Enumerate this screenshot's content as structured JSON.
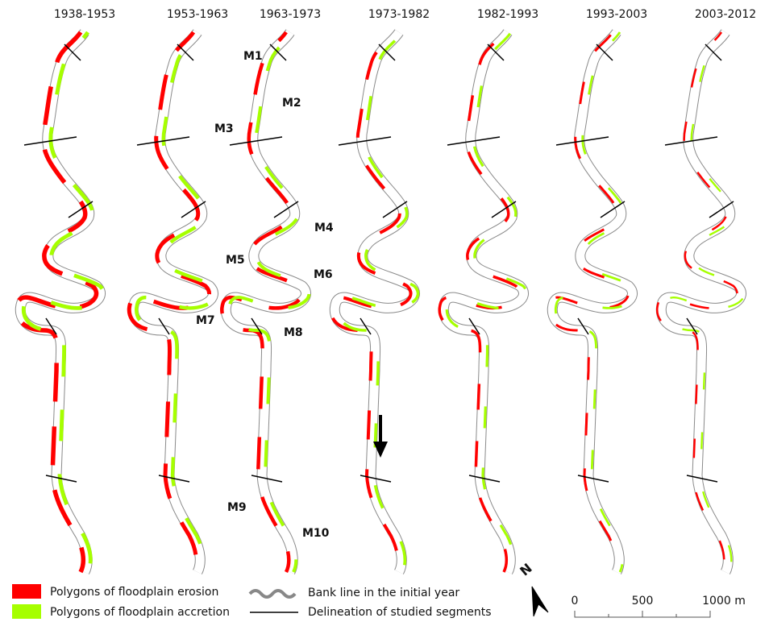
{
  "panels": [
    {
      "title": "1938-1953"
    },
    {
      "title": "1953-1963"
    },
    {
      "title": "1963-1973"
    },
    {
      "title": "1973-1982"
    },
    {
      "title": "1982-1993"
    },
    {
      "title": "1993-2003"
    },
    {
      "title": "2003-2012"
    }
  ],
  "segment_labels": [
    {
      "label": "M1"
    },
    {
      "label": "M2"
    },
    {
      "label": "M3"
    },
    {
      "label": "M4"
    },
    {
      "label": "M5"
    },
    {
      "label": "M6"
    },
    {
      "label": "M7"
    },
    {
      "label": "M8"
    },
    {
      "label": "M9"
    },
    {
      "label": "M10"
    }
  ],
  "legend": {
    "items": [
      {
        "label": "Polygons of floodplain erosion"
      },
      {
        "label": "Polygons of floodplain accretion"
      },
      {
        "label": "Bank line in the initial year"
      },
      {
        "label": "Delineation of studied segments"
      }
    ]
  },
  "north_arrow": {
    "label": "N"
  },
  "scale_bar": {
    "labels": [
      "0",
      "500",
      "1000 m"
    ]
  }
}
